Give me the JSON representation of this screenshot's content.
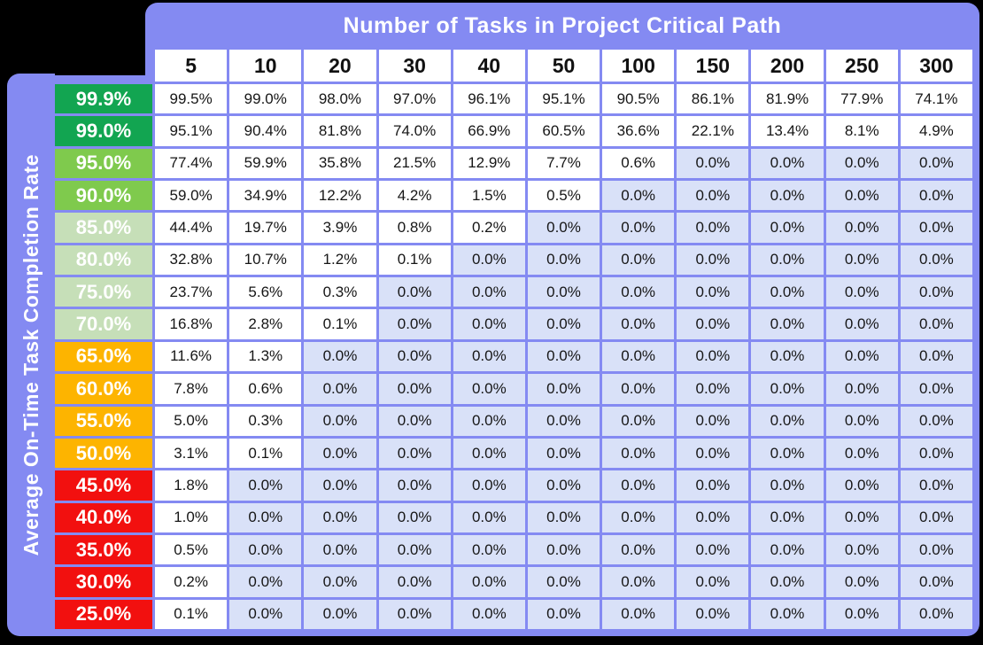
{
  "title": "Number of Tasks in Project Critical Path",
  "y_axis_label": "Average On-Time Task Completion Rate",
  "colors": {
    "frame_purple": "#848af2",
    "zero_cell": "#d9e1f8",
    "nonzero_cell": "#ffffff",
    "green_strong": "#12a551",
    "green_mid": "#7fca4d",
    "green_pale": "#c6dfb8",
    "amber": "#fdb400",
    "red": "#f2100f",
    "background": "#000000"
  },
  "table": {
    "columns": [
      "5",
      "10",
      "20",
      "30",
      "40",
      "50",
      "100",
      "150",
      "200",
      "250",
      "300"
    ],
    "rows": [
      {
        "label": "99.9%",
        "color": "#12a551",
        "values": [
          "99.5%",
          "99.0%",
          "98.0%",
          "97.0%",
          "96.1%",
          "95.1%",
          "90.5%",
          "86.1%",
          "81.9%",
          "77.9%",
          "74.1%"
        ]
      },
      {
        "label": "99.0%",
        "color": "#12a551",
        "values": [
          "95.1%",
          "90.4%",
          "81.8%",
          "74.0%",
          "66.9%",
          "60.5%",
          "36.6%",
          "22.1%",
          "13.4%",
          "8.1%",
          "4.9%"
        ]
      },
      {
        "label": "95.0%",
        "color": "#7fca4d",
        "values": [
          "77.4%",
          "59.9%",
          "35.8%",
          "21.5%",
          "12.9%",
          "7.7%",
          "0.6%",
          "0.0%",
          "0.0%",
          "0.0%",
          "0.0%"
        ]
      },
      {
        "label": "90.0%",
        "color": "#7fca4d",
        "values": [
          "59.0%",
          "34.9%",
          "12.2%",
          "4.2%",
          "1.5%",
          "0.5%",
          "0.0%",
          "0.0%",
          "0.0%",
          "0.0%",
          "0.0%"
        ]
      },
      {
        "label": "85.0%",
        "color": "#c6dfb8",
        "values": [
          "44.4%",
          "19.7%",
          "3.9%",
          "0.8%",
          "0.2%",
          "0.0%",
          "0.0%",
          "0.0%",
          "0.0%",
          "0.0%",
          "0.0%"
        ]
      },
      {
        "label": "80.0%",
        "color": "#c6dfb8",
        "values": [
          "32.8%",
          "10.7%",
          "1.2%",
          "0.1%",
          "0.0%",
          "0.0%",
          "0.0%",
          "0.0%",
          "0.0%",
          "0.0%",
          "0.0%"
        ]
      },
      {
        "label": "75.0%",
        "color": "#c6dfb8",
        "values": [
          "23.7%",
          "5.6%",
          "0.3%",
          "0.0%",
          "0.0%",
          "0.0%",
          "0.0%",
          "0.0%",
          "0.0%",
          "0.0%",
          "0.0%"
        ]
      },
      {
        "label": "70.0%",
        "color": "#c6dfb8",
        "values": [
          "16.8%",
          "2.8%",
          "0.1%",
          "0.0%",
          "0.0%",
          "0.0%",
          "0.0%",
          "0.0%",
          "0.0%",
          "0.0%",
          "0.0%"
        ]
      },
      {
        "label": "65.0%",
        "color": "#fdb400",
        "values": [
          "11.6%",
          "1.3%",
          "0.0%",
          "0.0%",
          "0.0%",
          "0.0%",
          "0.0%",
          "0.0%",
          "0.0%",
          "0.0%",
          "0.0%"
        ]
      },
      {
        "label": "60.0%",
        "color": "#fdb400",
        "values": [
          "7.8%",
          "0.6%",
          "0.0%",
          "0.0%",
          "0.0%",
          "0.0%",
          "0.0%",
          "0.0%",
          "0.0%",
          "0.0%",
          "0.0%"
        ]
      },
      {
        "label": "55.0%",
        "color": "#fdb400",
        "values": [
          "5.0%",
          "0.3%",
          "0.0%",
          "0.0%",
          "0.0%",
          "0.0%",
          "0.0%",
          "0.0%",
          "0.0%",
          "0.0%",
          "0.0%"
        ]
      },
      {
        "label": "50.0%",
        "color": "#fdb400",
        "values": [
          "3.1%",
          "0.1%",
          "0.0%",
          "0.0%",
          "0.0%",
          "0.0%",
          "0.0%",
          "0.0%",
          "0.0%",
          "0.0%",
          "0.0%"
        ]
      },
      {
        "label": "45.0%",
        "color": "#f2100f",
        "values": [
          "1.8%",
          "0.0%",
          "0.0%",
          "0.0%",
          "0.0%",
          "0.0%",
          "0.0%",
          "0.0%",
          "0.0%",
          "0.0%",
          "0.0%"
        ]
      },
      {
        "label": "40.0%",
        "color": "#f2100f",
        "values": [
          "1.0%",
          "0.0%",
          "0.0%",
          "0.0%",
          "0.0%",
          "0.0%",
          "0.0%",
          "0.0%",
          "0.0%",
          "0.0%",
          "0.0%"
        ]
      },
      {
        "label": "35.0%",
        "color": "#f2100f",
        "values": [
          "0.5%",
          "0.0%",
          "0.0%",
          "0.0%",
          "0.0%",
          "0.0%",
          "0.0%",
          "0.0%",
          "0.0%",
          "0.0%",
          "0.0%"
        ]
      },
      {
        "label": "30.0%",
        "color": "#f2100f",
        "values": [
          "0.2%",
          "0.0%",
          "0.0%",
          "0.0%",
          "0.0%",
          "0.0%",
          "0.0%",
          "0.0%",
          "0.0%",
          "0.0%",
          "0.0%"
        ]
      },
      {
        "label": "25.0%",
        "color": "#f2100f",
        "values": [
          "0.1%",
          "0.0%",
          "0.0%",
          "0.0%",
          "0.0%",
          "0.0%",
          "0.0%",
          "0.0%",
          "0.0%",
          "0.0%",
          "0.0%"
        ]
      }
    ]
  },
  "chart_data": {
    "type": "heatmap",
    "title": "Number of Tasks in Project Critical Path",
    "xlabel": "Number of Tasks in Project Critical Path",
    "ylabel": "Average On-Time Task Completion Rate",
    "x": [
      5,
      10,
      20,
      30,
      40,
      50,
      100,
      150,
      200,
      250,
      300
    ],
    "y": [
      99.9,
      99.0,
      95.0,
      90.0,
      85.0,
      80.0,
      75.0,
      70.0,
      65.0,
      60.0,
      55.0,
      50.0,
      45.0,
      40.0,
      35.0,
      30.0,
      25.0
    ],
    "values_percent": [
      [
        99.5,
        99.0,
        98.0,
        97.0,
        96.1,
        95.1,
        90.5,
        86.1,
        81.9,
        77.9,
        74.1
      ],
      [
        95.1,
        90.4,
        81.8,
        74.0,
        66.9,
        60.5,
        36.6,
        22.1,
        13.4,
        8.1,
        4.9
      ],
      [
        77.4,
        59.9,
        35.8,
        21.5,
        12.9,
        7.7,
        0.6,
        0.0,
        0.0,
        0.0,
        0.0
      ],
      [
        59.0,
        34.9,
        12.2,
        4.2,
        1.5,
        0.5,
        0.0,
        0.0,
        0.0,
        0.0,
        0.0
      ],
      [
        44.4,
        19.7,
        3.9,
        0.8,
        0.2,
        0.0,
        0.0,
        0.0,
        0.0,
        0.0,
        0.0
      ],
      [
        32.8,
        10.7,
        1.2,
        0.1,
        0.0,
        0.0,
        0.0,
        0.0,
        0.0,
        0.0,
        0.0
      ],
      [
        23.7,
        5.6,
        0.3,
        0.0,
        0.0,
        0.0,
        0.0,
        0.0,
        0.0,
        0.0,
        0.0
      ],
      [
        16.8,
        2.8,
        0.1,
        0.0,
        0.0,
        0.0,
        0.0,
        0.0,
        0.0,
        0.0,
        0.0
      ],
      [
        11.6,
        1.3,
        0.0,
        0.0,
        0.0,
        0.0,
        0.0,
        0.0,
        0.0,
        0.0,
        0.0
      ],
      [
        7.8,
        0.6,
        0.0,
        0.0,
        0.0,
        0.0,
        0.0,
        0.0,
        0.0,
        0.0,
        0.0
      ],
      [
        5.0,
        0.3,
        0.0,
        0.0,
        0.0,
        0.0,
        0.0,
        0.0,
        0.0,
        0.0,
        0.0
      ],
      [
        3.1,
        0.1,
        0.0,
        0.0,
        0.0,
        0.0,
        0.0,
        0.0,
        0.0,
        0.0,
        0.0
      ],
      [
        1.8,
        0.0,
        0.0,
        0.0,
        0.0,
        0.0,
        0.0,
        0.0,
        0.0,
        0.0,
        0.0
      ],
      [
        1.0,
        0.0,
        0.0,
        0.0,
        0.0,
        0.0,
        0.0,
        0.0,
        0.0,
        0.0,
        0.0
      ],
      [
        0.5,
        0.0,
        0.0,
        0.0,
        0.0,
        0.0,
        0.0,
        0.0,
        0.0,
        0.0,
        0.0
      ],
      [
        0.2,
        0.0,
        0.0,
        0.0,
        0.0,
        0.0,
        0.0,
        0.0,
        0.0,
        0.0,
        0.0
      ],
      [
        0.1,
        0.0,
        0.0,
        0.0,
        0.0,
        0.0,
        0.0,
        0.0,
        0.0,
        0.0,
        0.0
      ]
    ],
    "cell_color_rule": "white if value > 0 else #d9e1f8",
    "legend_position": "none",
    "grid": true
  }
}
